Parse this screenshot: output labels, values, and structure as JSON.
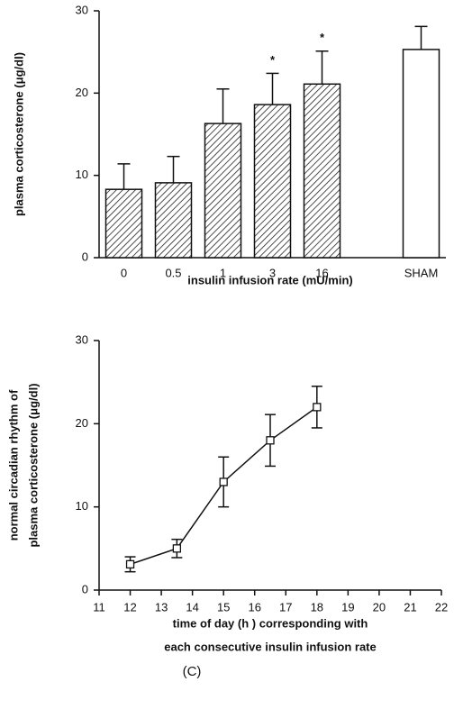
{
  "chart_data": [
    {
      "type": "bar",
      "y_label": "plasma corticosterone (μg/dl)",
      "x_label": "insulin infusion rate (mU/min)",
      "categories": [
        "0",
        "0.5",
        "1",
        "3",
        "16",
        null,
        "SHAM"
      ],
      "values": [
        8.3,
        9.1,
        16.3,
        18.6,
        21.1,
        null,
        25.3
      ],
      "errors": [
        3.1,
        3.2,
        4.2,
        3.8,
        4.0,
        null,
        2.8
      ],
      "bar_fill": [
        "hatched",
        "hatched",
        "hatched",
        "hatched",
        "hatched",
        null,
        "open"
      ],
      "annotations": [
        {
          "text": "*",
          "category": "3"
        },
        {
          "text": "*",
          "category": "16"
        }
      ],
      "ylim": [
        0,
        30
      ],
      "yticks": [
        0,
        10,
        20,
        30
      ]
    },
    {
      "type": "line",
      "y_label": [
        "normal circadian rhythm of",
        "plasma corticosterone  (μg/dl)"
      ],
      "x_label": [
        "time of day (h ) corresponding with",
        "each consecutive insulin infusion rate"
      ],
      "x": [
        12,
        13.5,
        15,
        16.5,
        18
      ],
      "values": [
        3.1,
        5,
        13,
        18,
        22
      ],
      "errors": [
        0.9,
        1.1,
        3,
        3.1,
        2.5
      ],
      "xlim": [
        11,
        22
      ],
      "xticks": [
        11,
        12,
        13,
        14,
        15,
        16,
        17,
        18,
        19,
        20,
        21,
        22
      ],
      "ylim": [
        0,
        30
      ],
      "yticks": [
        0,
        10,
        20,
        30
      ]
    }
  ],
  "caption": "(C)"
}
